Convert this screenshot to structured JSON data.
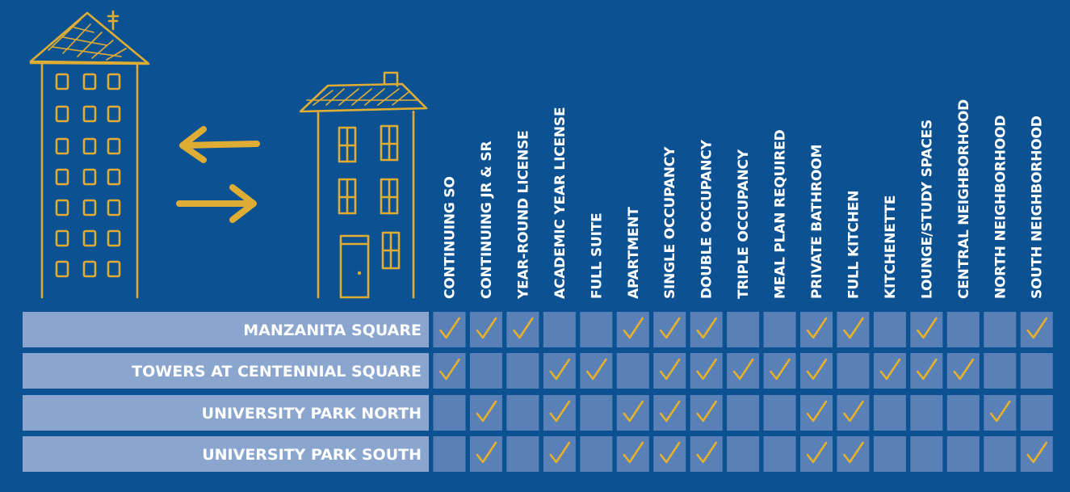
{
  "chart_data": {
    "type": "table",
    "colors": {
      "background": "#0c5292",
      "label_bar": "#8aa6cf",
      "cell_light": "#8aa6cf",
      "cell_dark": "#5a80b8",
      "check": "#e6b12a",
      "illustration": "#e0ad34",
      "text": "#ffffff"
    },
    "columns": [
      "CONTINUING SO",
      "CONTINUING JR & SR",
      "YEAR-ROUND LICENSE",
      "ACADEMIC YEAR LICENSE",
      "FULL SUITE",
      "APARTMENT",
      "SINGLE OCCUPANCY",
      "DOUBLE OCCUPANCY",
      "TRIPLE OCCUPANCY",
      "MEAL PLAN REQUIRED",
      "PRIVATE BATHROOM",
      "FULL KITCHEN",
      "KITCHENETTE",
      "LOUNGE/STUDY SPACES",
      "CENTRAL NEIGHBORHOOD",
      "NORTH NEIGHBORHOOD",
      "SOUTH NEIGHBORHOOD"
    ],
    "rows": [
      {
        "label": "MANZANITA SQUARE",
        "checks": [
          true,
          true,
          true,
          false,
          false,
          true,
          true,
          true,
          false,
          false,
          true,
          true,
          false,
          true,
          false,
          false,
          true
        ]
      },
      {
        "label": "TOWERS AT CENTENNIAL SQUARE",
        "checks": [
          true,
          false,
          false,
          true,
          true,
          false,
          true,
          true,
          true,
          true,
          true,
          false,
          true,
          true,
          true,
          false,
          false
        ]
      },
      {
        "label": "UNIVERSITY PARK NORTH",
        "checks": [
          false,
          true,
          false,
          true,
          false,
          true,
          true,
          true,
          false,
          false,
          true,
          true,
          false,
          false,
          false,
          true,
          false
        ]
      },
      {
        "label": "UNIVERSITY PARK SOUTH",
        "checks": [
          false,
          true,
          false,
          true,
          false,
          true,
          true,
          true,
          false,
          false,
          true,
          true,
          false,
          false,
          false,
          false,
          true
        ]
      }
    ]
  }
}
